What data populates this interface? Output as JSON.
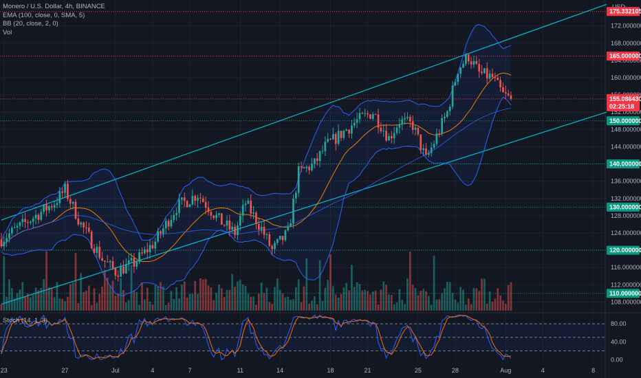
{
  "legend": {
    "symbol": "Monero / U.S. Dollar, 4h, BINANCE",
    "ema": "EMA (100, close, 0, SMA, 5)",
    "bb": "BB (20, close, 2, 0)",
    "vol": "Vol",
    "stoch": "Stoch (14, 1, 3)"
  },
  "colors": {
    "background": "#131722",
    "up": "#26a69a",
    "down": "#ef5350",
    "bb_band": "#2962ff",
    "bb_basis": "#f57c00",
    "channel": "#00bcd4",
    "stoch_k": "#2962ff",
    "stoch_d": "#ff6d00",
    "red_level": "#f23645",
    "green_level": "#089981"
  },
  "chart_data": {
    "type": "candlestick",
    "currency": "USD",
    "price_axis": {
      "ylim": [
        106,
        178
      ],
      "ticks": [
        "172.000000",
        "168.000000",
        "164.000000",
        "160.000000",
        "156.000000",
        "152.000000",
        "148.000000",
        "144.000000",
        "140.000000",
        "136.000000",
        "132.000000",
        "128.000000",
        "124.000000",
        "120.000000",
        "116.000000",
        "112.000000",
        "108.000000"
      ],
      "tick_values": [
        172,
        168,
        164,
        160,
        156,
        152,
        148,
        144,
        140,
        136,
        132,
        128,
        124,
        120,
        116,
        112,
        108
      ]
    },
    "x_ticks": [
      {
        "label": "23",
        "i": 1
      },
      {
        "label": "27",
        "i": 24
      },
      {
        "label": "Jul",
        "i": 43
      },
      {
        "label": "4",
        "i": 57
      },
      {
        "label": "7",
        "i": 71
      },
      {
        "label": "11",
        "i": 90
      },
      {
        "label": "14",
        "i": 105
      },
      {
        "label": "18",
        "i": 124
      },
      {
        "label": "21",
        "i": 138
      },
      {
        "label": "25",
        "i": 157
      },
      {
        "label": "28",
        "i": 171
      },
      {
        "label": "Aug",
        "i": 190
      },
      {
        "label": "4",
        "i": 204
      },
      {
        "label": "8",
        "i": 223
      }
    ],
    "last_index": 192,
    "total_slots": 228,
    "price_anchors": [
      [
        0,
        122.5
      ],
      [
        20,
        131
      ],
      [
        24,
        134
      ],
      [
        30,
        126
      ],
      [
        38,
        118
      ],
      [
        43,
        115
      ],
      [
        50,
        117
      ],
      [
        58,
        122
      ],
      [
        66,
        130
      ],
      [
        74,
        133
      ],
      [
        82,
        127
      ],
      [
        88,
        124
      ],
      [
        92,
        131
      ],
      [
        98,
        125
      ],
      [
        102,
        120
      ],
      [
        108,
        124
      ],
      [
        112,
        138
      ],
      [
        118,
        140
      ],
      [
        122,
        144
      ],
      [
        128,
        147
      ],
      [
        134,
        150
      ],
      [
        140,
        152
      ],
      [
        146,
        146
      ],
      [
        150,
        150
      ],
      [
        155,
        149
      ],
      [
        160,
        141
      ],
      [
        163,
        145
      ],
      [
        168,
        152
      ],
      [
        172,
        162
      ],
      [
        176,
        165
      ],
      [
        180,
        161
      ],
      [
        185,
        160
      ],
      [
        189,
        156
      ],
      [
        192,
        155
      ]
    ],
    "levels": [
      {
        "label": "175.332105",
        "value": 175.332105,
        "color": "red"
      },
      {
        "label": "165.000000",
        "value": 165,
        "color": "red"
      },
      {
        "label": "150.000000",
        "value": 150,
        "color": "green"
      },
      {
        "label": "140.000000",
        "value": 140,
        "color": "green"
      },
      {
        "label": "130.000000",
        "value": 130,
        "color": "green"
      },
      {
        "label": "120.000000",
        "value": 120,
        "color": "green"
      },
      {
        "label": "110.000000",
        "value": 110,
        "color": "green"
      }
    ],
    "current_price": {
      "label": "155.086430",
      "countdown": "02:25:18",
      "value": 155.08643
    },
    "channel_upper": {
      "i1": 0,
      "v1": 127,
      "i2": 228,
      "v2": 177
    },
    "channel_lower": {
      "i1": 0,
      "v1": 107.5,
      "i2": 228,
      "v2": 152
    },
    "stochastic": {
      "ylim": [
        -5,
        100
      ],
      "ticks": [
        "80.00",
        "40.00",
        "0.00"
      ],
      "tick_values": [
        80,
        40,
        0
      ],
      "upper_band": 80,
      "lower_band": 20,
      "middle": 50
    }
  }
}
